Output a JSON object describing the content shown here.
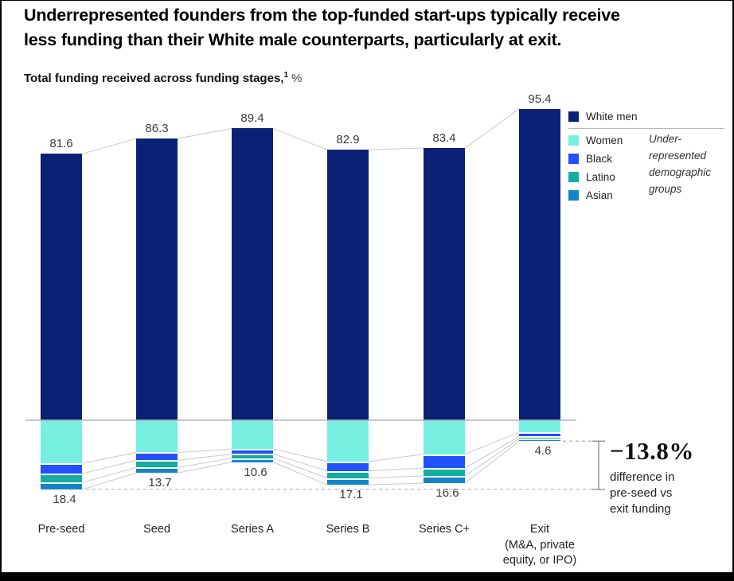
{
  "header": {
    "title": "Underrepresented founders from the top-funded start-ups typically receive\nless funding than their White male counterparts, particularly at exit.",
    "subtitle": "Total funding received across funding stages,",
    "subtitle_footnote": "1",
    "subtitle_unit": "%"
  },
  "colors": {
    "white_men": "#0b2175",
    "women": "#76efe2",
    "black": "#2251fa",
    "latino": "#14ada1",
    "asian": "#1385c6",
    "axis_line": "#b4b4bc",
    "connector_line": "#c9c9c9",
    "dashed_line": "#adadad",
    "bracket": "#888888"
  },
  "chart_data": {
    "type": "bar",
    "variant": "diverging-stacked",
    "title": "Total funding received across funding stages, %",
    "categories": [
      "Pre-seed",
      "Seed",
      "Series A",
      "Series B",
      "Series C+",
      "Exit\n(M&A, private\nequity, or IPO)"
    ],
    "above_axis": {
      "name": "White men",
      "color": "#0b2175",
      "values": [
        81.6,
        86.3,
        89.4,
        82.9,
        83.4,
        95.4
      ]
    },
    "below_axis": {
      "group_name": "Underrepresented demographic groups",
      "total_labels": [
        18.4,
        13.7,
        10.6,
        17.1,
        16.6,
        4.6
      ],
      "series": [
        {
          "name": "Women",
          "color": "#76efe2",
          "values_estimated": [
            12.3,
            9.2,
            8.2,
            11.8,
            9.7,
            3.4
          ]
        },
        {
          "name": "Black",
          "color": "#2251fa",
          "values_estimated": [
            2.5,
            1.8,
            1.0,
            2.2,
            3.5,
            0.8
          ]
        },
        {
          "name": "Latino",
          "color": "#14ada1",
          "values_estimated": [
            2.1,
            1.6,
            0.7,
            1.6,
            1.8,
            0.2
          ]
        },
        {
          "name": "Asian",
          "color": "#1385c6",
          "values_estimated": [
            1.5,
            1.1,
            0.7,
            1.5,
            1.6,
            0.2
          ]
        }
      ]
    },
    "legend_note": "Under-\nrepresented\ndemographic\ngroups",
    "grid": false,
    "legend_position": "top-right"
  },
  "annotation": {
    "value": "−13.8%",
    "caption": "difference in\npre-seed vs\nexit funding"
  }
}
